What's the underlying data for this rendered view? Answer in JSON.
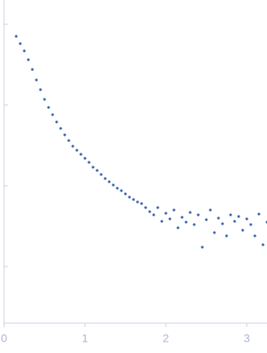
{
  "chart_data": {
    "type": "scatter",
    "color": "#3a64b0",
    "x": [
      0.15,
      0.2,
      0.25,
      0.3,
      0.35,
      0.4,
      0.45,
      0.5,
      0.55,
      0.6,
      0.65,
      0.7,
      0.75,
      0.8,
      0.85,
      0.9,
      0.95,
      1.0,
      1.05,
      1.1,
      1.15,
      1.2,
      1.25,
      1.3,
      1.35,
      1.4,
      1.45,
      1.5,
      1.55,
      1.6,
      1.65,
      1.7,
      1.75,
      1.8,
      1.85,
      1.9,
      1.95,
      2.0,
      2.05,
      2.1,
      2.15,
      2.2,
      2.25,
      2.3,
      2.35,
      2.4,
      2.45,
      2.5,
      2.55,
      2.6,
      2.65,
      2.7,
      2.75,
      2.8,
      2.85,
      2.9,
      2.95,
      3.0,
      3.05,
      3.1,
      3.15,
      3.2,
      3.25
    ],
    "values": [
      -0.15,
      -0.24,
      -0.33,
      -0.44,
      -0.56,
      -0.69,
      -0.81,
      -0.93,
      -1.03,
      -1.12,
      -1.21,
      -1.29,
      -1.37,
      -1.44,
      -1.51,
      -1.56,
      -1.61,
      -1.66,
      -1.71,
      -1.77,
      -1.81,
      -1.86,
      -1.91,
      -1.95,
      -1.99,
      -2.03,
      -2.06,
      -2.1,
      -2.14,
      -2.17,
      -2.2,
      -2.22,
      -2.27,
      -2.32,
      -2.36,
      -2.27,
      -2.44,
      -2.34,
      -2.41,
      -2.3,
      -2.52,
      -2.39,
      -2.45,
      -2.33,
      -2.48,
      -2.36,
      -2.76,
      -2.42,
      -2.3,
      -2.58,
      -2.4,
      -2.47,
      -2.62,
      -2.36,
      -2.44,
      -2.38,
      -2.55,
      -2.41,
      -2.48,
      -2.62,
      -2.35,
      -2.73,
      -2.45
    ],
    "xlim": [
      0,
      3.25
    ],
    "xticks": [
      0,
      1,
      2,
      3
    ],
    "ylim": [
      -3.7,
      0.3
    ],
    "yticks": [
      -3,
      -2,
      -1,
      0
    ]
  }
}
